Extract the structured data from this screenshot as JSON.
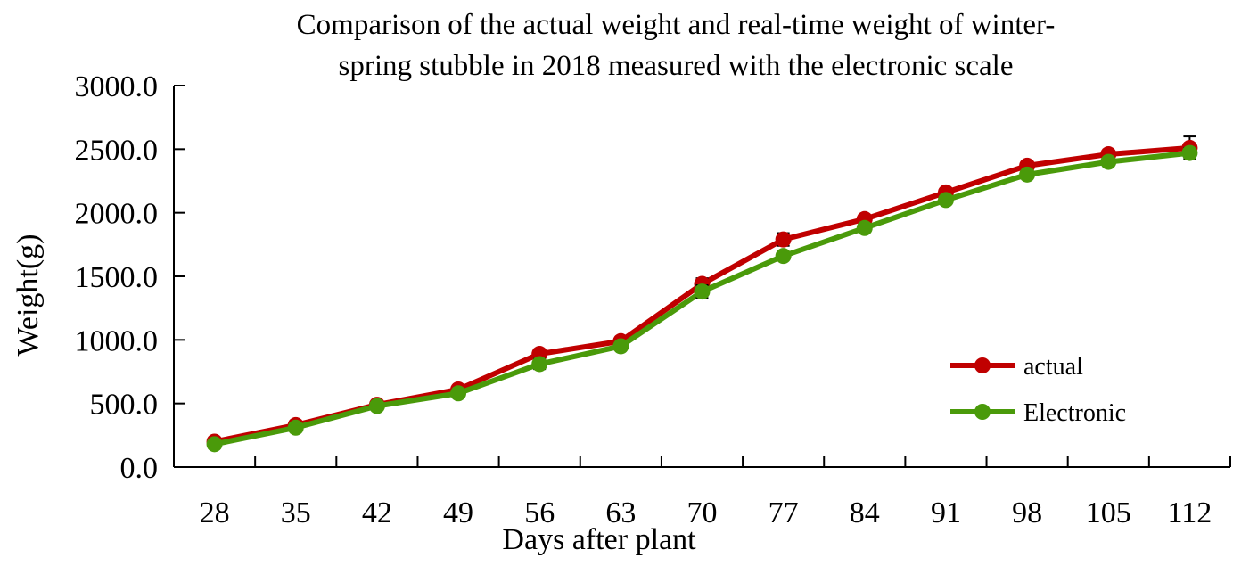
{
  "chart_data": {
    "type": "line",
    "title_lines": [
      "Comparison of the actual weight and real-time weight of winter-",
      "spring stubble in 2018 measured with the electronic scale"
    ],
    "xlabel": "Days after plant",
    "ylabel": "Weight(g)",
    "categories": [
      "28",
      "35",
      "42",
      "49",
      "56",
      "63",
      "70",
      "77",
      "84",
      "91",
      "98",
      "105",
      "112"
    ],
    "ylim": [
      0,
      3000
    ],
    "y_ticks": [
      "0.0",
      "500.0",
      "1000.0",
      "1500.0",
      "2000.0",
      "2500.0",
      "3000.0"
    ],
    "grid": false,
    "legend_position": "right",
    "series": [
      {
        "name": "actual",
        "color": "#c00000",
        "values": [
          200,
          330,
          490,
          610,
          890,
          990,
          1440,
          1790,
          1950,
          2160,
          2370,
          2460,
          2510
        ],
        "error": [
          15,
          20,
          15,
          20,
          30,
          25,
          45,
          50,
          25,
          25,
          20,
          20,
          90
        ]
      },
      {
        "name": "Electronic",
        "color": "#4a9a0a",
        "values": [
          180,
          310,
          480,
          580,
          810,
          950,
          1380,
          1660,
          1880,
          2100,
          2300,
          2400,
          2470
        ],
        "error": [
          10,
          15,
          10,
          15,
          40,
          20,
          50,
          20,
          20,
          20,
          20,
          20,
          40
        ]
      }
    ]
  }
}
